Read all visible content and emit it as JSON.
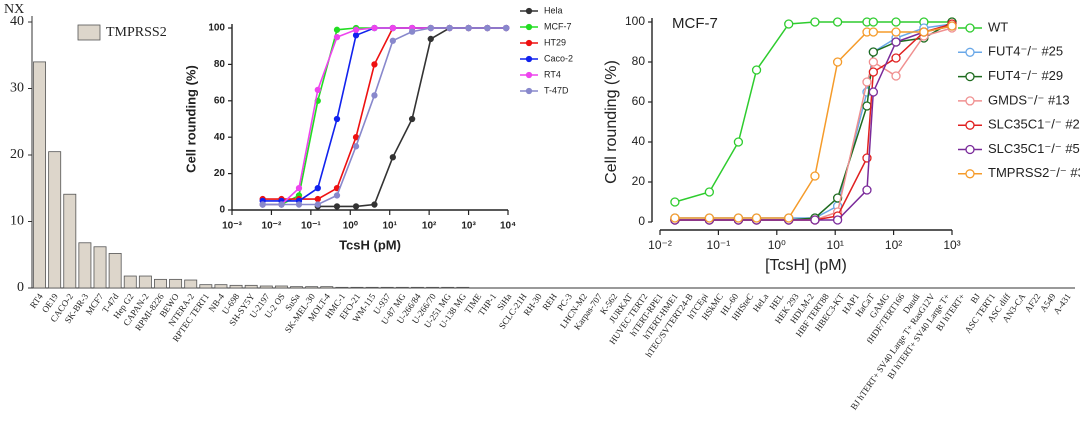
{
  "chart_data": [
    {
      "type": "bar",
      "y_label": "NX",
      "categories": [
        "RT4",
        "OE19",
        "CACO-2",
        "SK-BR-3",
        "MCF7",
        "T-47d",
        "Hep G2",
        "CAPAN-2",
        "RPMI-8226",
        "BEWO",
        "NTERA-2",
        "RPTEC TERT1",
        "NB-4",
        "U-698",
        "SH-SY5Y",
        "U-2197",
        "U-2 OS",
        "SuSa",
        "SK-MEL-30",
        "MOLT-4",
        "HMC-1",
        "EFO-21",
        "WM-115",
        "U-937",
        "U-87 MG",
        "U-266/84",
        "U-266/70",
        "U-251 MG",
        "U-138 MG",
        "TIME",
        "THP-1",
        "SiHa",
        "SCLC-21H",
        "RH-30",
        "REH",
        "PC-3",
        "LHCN-M2",
        "Karpas-707",
        "K-562",
        "JURKAT",
        "HUVEC TERT2",
        "hTERT-RPE1",
        "hTERT-HME1",
        "hTEC/SVTERT24-B",
        "hTCEpi",
        "HSkMC",
        "HL-60",
        "HHSteC",
        "HeLa",
        "HEL",
        "HEK 293",
        "HDLM-2",
        "HBF TERT88",
        "HBEC3-KT",
        "HAP1",
        "HaCaT",
        "GAMG",
        "fHDF/TERT166",
        "Daudi",
        "BJ hTERT+ SV40 Large T+ RasG12V",
        "BJ hTERT+ SV40 Large T+",
        "BJ hTERT+",
        "BJ",
        "ASC TERT1",
        "ASC diff",
        "AN3-CA",
        "AF22",
        "A549",
        "A-431"
      ],
      "series": [
        {
          "name": "TMPRSS2",
          "color": "#ddd6cb",
          "values": [
            34,
            20.5,
            14.1,
            6.8,
            6.2,
            5.2,
            1.8,
            1.8,
            1.3,
            1.3,
            1.2,
            0.5,
            0.5,
            0.4,
            0.4,
            0.3,
            0.3,
            0.2,
            0.2,
            0.2,
            0.1,
            0.1,
            0.1,
            0.1,
            0.1,
            0.1,
            0.1,
            0.1,
            0.1,
            0,
            0,
            0,
            0,
            0,
            0,
            0,
            0,
            0,
            0,
            0,
            0,
            0,
            0,
            0,
            0,
            0,
            0,
            0,
            0,
            0,
            0,
            0,
            0,
            0,
            0,
            0,
            0,
            0,
            0,
            0,
            0,
            0,
            0,
            0,
            0,
            0,
            0,
            0,
            0
          ]
        }
      ],
      "highlight": {
        "indices": [
          2,
          4
        ],
        "color": "#e8332a"
      },
      "ylim": [
        0,
        40
      ],
      "yticks": [
        0,
        10,
        20,
        30,
        40
      ],
      "legend": "upper left"
    },
    {
      "type": "line",
      "x_label": "TcsH (pM)",
      "y_label": "Cell rounding (%)",
      "xscale": "log",
      "markers": "filled",
      "x": [
        0.006,
        0.018,
        0.05,
        0.15,
        0.46,
        1.4,
        4.1,
        12,
        37,
        110,
        330,
        1000,
        3000,
        9000
      ],
      "series": [
        {
          "name": "Hela",
          "color": "#333333",
          "values": [
            null,
            null,
            null,
            2,
            2,
            2,
            3,
            29,
            50,
            94,
            100,
            100,
            100,
            100
          ]
        },
        {
          "name": "MCF-7",
          "color": "#22dd22",
          "values": [
            3,
            3,
            8,
            60,
            99,
            100,
            100,
            100,
            100,
            100,
            100,
            100,
            100,
            100
          ]
        },
        {
          "name": "HT29",
          "color": "#ee1111",
          "values": [
            6,
            6,
            6,
            6,
            12,
            40,
            80,
            100,
            100,
            100,
            100,
            100,
            100,
            100
          ]
        },
        {
          "name": "Caco-2",
          "color": "#1122ee",
          "values": [
            5,
            5,
            5,
            12,
            50,
            96,
            100,
            100,
            100,
            100,
            100,
            100,
            100,
            100
          ]
        },
        {
          "name": "RT4",
          "color": "#ee44ee",
          "values": [
            3,
            3,
            12,
            66,
            95,
            99,
            100,
            100,
            100,
            100,
            100,
            100,
            100,
            100
          ]
        },
        {
          "name": "T-47D",
          "color": "#8888cc",
          "values": [
            3,
            3,
            3,
            3,
            8,
            35,
            63,
            93,
            98,
            100,
            100,
            100,
            100,
            100
          ]
        }
      ],
      "xlim": [
        0.001,
        10000
      ],
      "xticks": [
        {
          "value": 0.001,
          "label": "10⁻³"
        },
        {
          "value": 0.01,
          "label": "10⁻²"
        },
        {
          "value": 0.1,
          "label": "10⁻¹"
        },
        {
          "value": 1,
          "label": "10⁰"
        },
        {
          "value": 10,
          "label": "10¹"
        },
        {
          "value": 100,
          "label": "10²"
        },
        {
          "value": 1000,
          "label": "10³"
        },
        {
          "value": 10000,
          "label": "10⁴"
        }
      ],
      "ylim": [
        0,
        100
      ],
      "yticks": [
        0,
        20,
        40,
        60,
        80,
        100
      ],
      "legend": "right"
    },
    {
      "type": "line",
      "title": "MCF-7",
      "x_label": "[TcsH] (pM)",
      "y_label": "Cell rounding (%)",
      "xscale": "log",
      "markers": "open",
      "x": [
        0.018,
        0.07,
        0.22,
        0.45,
        1.6,
        4.5,
        11,
        35,
        45,
        110,
        330,
        1000
      ],
      "series": [
        {
          "name": "WT",
          "color": "#2ecc2e",
          "values": [
            10,
            15,
            40,
            76,
            99,
            100,
            100,
            100,
            100,
            100,
            100,
            100
          ]
        },
        {
          "name": "FUT4⁻/⁻ #25",
          "color": "#6aa8e8",
          "values": [
            2,
            2,
            2,
            2,
            2,
            2,
            8,
            65,
            85,
            92,
            97,
            99
          ]
        },
        {
          "name": "FUT4⁻/⁻ #29",
          "color": "#1e6b1e",
          "values": [
            1,
            1,
            1,
            1,
            1,
            2,
            12,
            58,
            85,
            90,
            92,
            100
          ]
        },
        {
          "name": "GMDS⁻/⁻ #13",
          "color": "#f09090",
          "values": [
            1,
            1,
            1,
            1,
            1,
            1,
            5,
            70,
            80,
            73,
            93,
            97
          ]
        },
        {
          "name": "SLC35C1⁻/⁻ #2",
          "color": "#e02020",
          "values": [
            1,
            1,
            1,
            1,
            1,
            1,
            3,
            32,
            75,
            82,
            95,
            99
          ]
        },
        {
          "name": "SLC35C1⁻/⁻ #5",
          "color": "#7a2a9a",
          "values": [
            1,
            1,
            1,
            1,
            1,
            1,
            1,
            16,
            65,
            90,
            95,
            98
          ]
        },
        {
          "name": "TMPRSS2⁻/⁻ #3",
          "color": "#f59b2a",
          "values": [
            2,
            2,
            2,
            2,
            2,
            23,
            80,
            95,
            95,
            95,
            95,
            98
          ]
        }
      ],
      "xlim": [
        0.01,
        1000
      ],
      "xticks": [
        {
          "value": 0.01,
          "label": "10⁻²"
        },
        {
          "value": 0.1,
          "label": "10⁻¹"
        },
        {
          "value": 1,
          "label": "10⁰"
        },
        {
          "value": 10,
          "label": "10¹"
        },
        {
          "value": 100,
          "label": "10²"
        },
        {
          "value": 1000,
          "label": "10³"
        }
      ],
      "ylim": [
        0,
        100
      ],
      "yticks": [
        0,
        20,
        40,
        60,
        80,
        100
      ],
      "legend": "right"
    }
  ]
}
